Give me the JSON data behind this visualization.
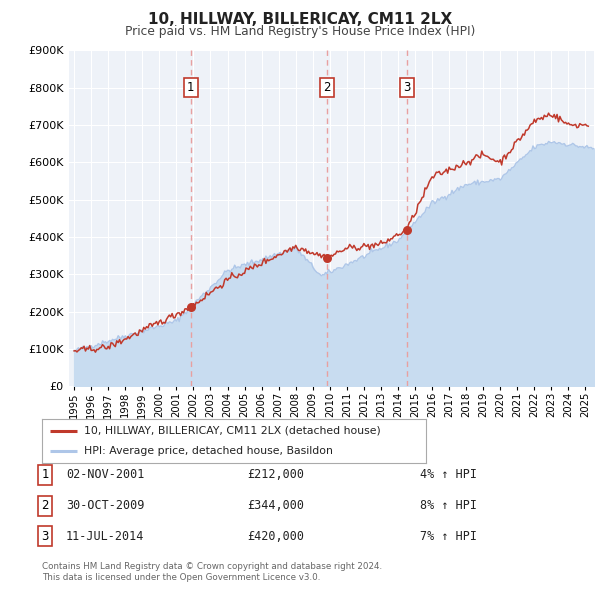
{
  "title": "10, HILLWAY, BILLERICAY, CM11 2LX",
  "subtitle": "Price paid vs. HM Land Registry's House Price Index (HPI)",
  "hpi_label": "HPI: Average price, detached house, Basildon",
  "price_label": "10, HILLWAY, BILLERICAY, CM11 2LX (detached house)",
  "hpi_color": "#aec6e8",
  "hpi_fill_color": "#c8dcf0",
  "price_color": "#c0392b",
  "sale_color": "#c0392b",
  "vline_color": "#e8a0a0",
  "background_color": "#eef2f8",
  "grid_color": "#ffffff",
  "ylim": [
    0,
    900000
  ],
  "yticks": [
    0,
    100000,
    200000,
    300000,
    400000,
    500000,
    600000,
    700000,
    800000,
    900000
  ],
  "sales": [
    {
      "num": 1,
      "date": "02-NOV-2001",
      "year": 2001.84,
      "price": 212000,
      "pct": "4%",
      "dir": "↑"
    },
    {
      "num": 2,
      "date": "30-OCT-2009",
      "year": 2009.83,
      "price": 344000,
      "pct": "8%",
      "dir": "↑"
    },
    {
      "num": 3,
      "date": "11-JUL-2014",
      "year": 2014.53,
      "price": 420000,
      "pct": "7%",
      "dir": "↑"
    }
  ],
  "footer1": "Contains HM Land Registry data © Crown copyright and database right 2024.",
  "footer2": "This data is licensed under the Open Government Licence v3.0."
}
